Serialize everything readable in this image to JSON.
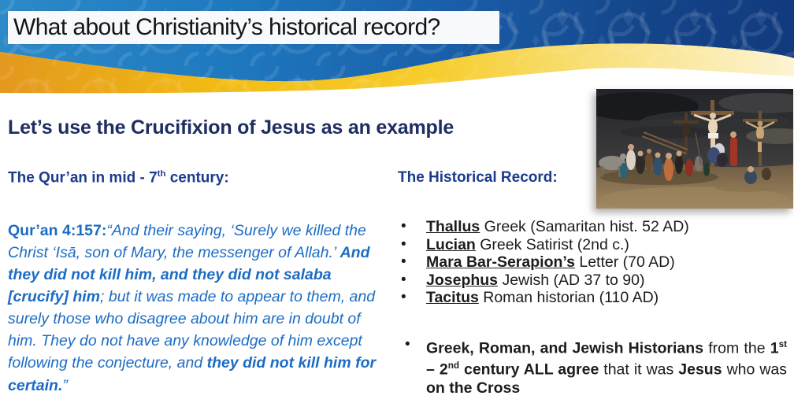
{
  "slide": {
    "title": "What about Christianity’s historical record?",
    "heading": "Let’s use the Crucifixion of Jesus as an example"
  },
  "quran_section": {
    "heading_segments": [
      {
        "text": "The Qur’an in mid - 7",
        "style": "bold"
      },
      {
        "text": "th",
        "style": "bold-sup"
      },
      {
        "text": " century:",
        "style": "bold"
      }
    ],
    "quote_segments": [
      {
        "text": "Qur’an 4:157",
        "style": "bold"
      },
      {
        "text": ":",
        "style": "bold"
      },
      {
        "text": "“And their saying, ‘Surely we killed the Christ ‘Isā, son of Mary, the messenger of Allah.’ ",
        "style": "italic"
      },
      {
        "text": "And they did not kill him, and they did not salaba [crucify] him",
        "style": "bold-italic"
      },
      {
        "text": "; but it was made to appear to them, and surely those who disagree about him are in doubt of him. They do not have any knowledge of him except following the conjecture, and ",
        "style": "italic"
      },
      {
        "text": "they did not kill him for certain.",
        "style": "bold-italic"
      },
      {
        "text": "”",
        "style": "italic"
      }
    ]
  },
  "historical_record": {
    "heading": "The Historical Record:",
    "sources": [
      {
        "name": "Thallus",
        "rest": " Greek (Samaritan hist. 52 AD)"
      },
      {
        "name": "Lucian",
        "rest": " Greek Satirist (2nd c.)"
      },
      {
        "name": "Mara Bar-Serapion’s",
        "rest": " Letter (70 AD)"
      },
      {
        "name": "Josephus",
        "rest": " Jewish (AD 37 to 90)"
      },
      {
        "name": "Tacitus",
        "rest": " Roman historian (110 AD)"
      }
    ],
    "conclusion_segments": [
      {
        "text": "Greek, Roman, and Jewish Historians",
        "style": "bold"
      },
      {
        "text": " from the ",
        "style": "normal"
      },
      {
        "text": "1",
        "style": "bold"
      },
      {
        "text": "st",
        "style": "bold-sup"
      },
      {
        "text": " – 2",
        "style": "bold"
      },
      {
        "text": "nd",
        "style": "bold-sup"
      },
      {
        "text": " century ALL agree",
        "style": "bold"
      },
      {
        "text": " that it was ",
        "style": "normal"
      },
      {
        "text": "Jesus",
        "style": "bold"
      },
      {
        "text": " who was ",
        "style": "normal"
      },
      {
        "text": "on the Cross",
        "style": "bold"
      }
    ]
  },
  "painting": {
    "description": "Crucifixion of Jesus painting: crowd before three crosses under a dark stormy sky"
  },
  "colors": {
    "header_blue": "#1e78be",
    "header_navy": "#123e84",
    "gold_orange": "#e49a25",
    "gold": "#f2bc13",
    "gold_pale": "#fbf0c6",
    "heading_navy": "#1e2d62",
    "subheading_blue": "#1c3b8d",
    "quote_blue": "#1c6cc4",
    "body_black": "#1c1c1c"
  }
}
